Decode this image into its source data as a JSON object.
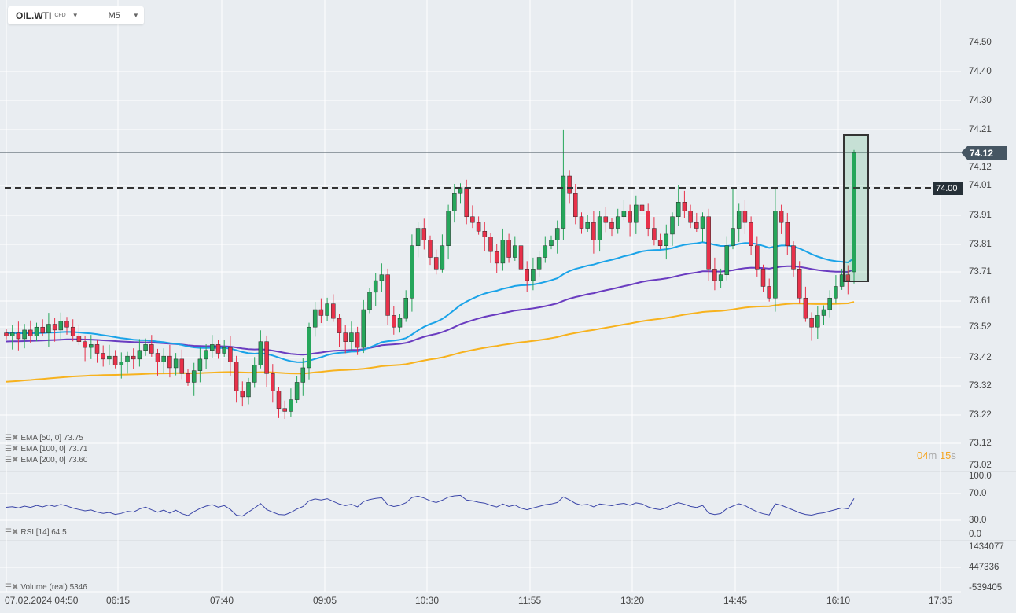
{
  "header": {
    "symbol": "OIL.WTI",
    "symbol_type": "CFD",
    "timeframe": "M5"
  },
  "legend": {
    "ema50": "EMA [50,  0] 73.75",
    "ema100": "EMA [100,  0] 73.71",
    "ema200": "EMA [200,  0] 73.60",
    "rsi": "RSI  [14]  64.5",
    "volume": "Volume  (real)  5346"
  },
  "price_axis": [
    "74.50",
    "74.40",
    "74.30",
    "74.21",
    "74.12",
    "74.01",
    "73.91",
    "73.81",
    "73.71",
    "73.61",
    "73.52",
    "73.42",
    "73.32",
    "73.22",
    "73.12",
    "73.02"
  ],
  "rsi_axis": [
    "100.0",
    "70.0",
    "30.0",
    "0.0"
  ],
  "volume_axis": [
    "1434077",
    "447336",
    "-539405"
  ],
  "time_axis": [
    "07.02.2024  04:50",
    "06:15",
    "07:40",
    "09:05",
    "10:30",
    "11:55",
    "13:20",
    "14:45",
    "16:10",
    "17:35"
  ],
  "current_price": "74.12",
  "level_line": "74.00",
  "countdown": {
    "min": "04",
    "min_unit": "m",
    "sec": "15",
    "sec_unit": "s"
  },
  "colors": {
    "up": "#26a65b",
    "down": "#e8314a",
    "ema50": "#1aa3e8",
    "ema100": "#6a3cc0",
    "ema200": "#f7b21e",
    "rsi": "#3b46a8"
  },
  "chart_data": {
    "type": "candlestick",
    "interval": "5m",
    "closes": [
      73.49,
      73.5,
      73.48,
      73.51,
      73.49,
      73.52,
      73.5,
      73.53,
      73.51,
      73.54,
      73.52,
      73.49,
      73.47,
      73.45,
      73.46,
      73.43,
      73.41,
      73.42,
      73.39,
      73.4,
      73.42,
      73.41,
      73.44,
      73.46,
      73.43,
      73.4,
      73.42,
      73.38,
      73.41,
      73.36,
      73.33,
      73.37,
      73.41,
      73.44,
      73.46,
      73.43,
      73.45,
      73.4,
      73.3,
      73.28,
      73.33,
      73.39,
      73.47,
      73.36,
      73.3,
      73.24,
      73.23,
      73.27,
      73.33,
      73.38,
      73.52,
      73.58,
      73.56,
      73.6,
      73.55,
      73.5,
      73.47,
      73.5,
      73.45,
      73.58,
      73.64,
      73.68,
      73.7,
      73.56,
      73.52,
      73.55,
      73.62,
      73.8,
      73.86,
      73.82,
      73.76,
      73.72,
      73.8,
      73.92,
      73.98,
      74.0,
      73.9,
      73.88,
      73.85,
      73.83,
      73.78,
      73.74,
      73.82,
      73.76,
      73.8,
      73.72,
      73.68,
      73.72,
      73.76,
      73.8,
      73.82,
      73.86,
      74.04,
      73.98,
      73.9,
      73.86,
      73.88,
      73.82,
      73.9,
      73.88,
      73.86,
      73.9,
      73.92,
      73.88,
      73.94,
      73.92,
      73.86,
      73.82,
      73.8,
      73.84,
      73.9,
      73.95,
      73.92,
      73.88,
      73.86,
      73.9,
      73.72,
      73.68,
      73.7,
      73.8,
      73.86,
      73.92,
      73.88,
      73.8,
      73.72,
      73.66,
      73.62,
      73.92,
      73.88,
      73.8,
      73.72,
      73.62,
      73.55,
      73.52,
      73.56,
      73.58,
      73.62,
      73.66,
      73.7,
      73.68,
      74.12
    ],
    "first_open": 73.5,
    "high_spikes": [
      {
        "i": 92,
        "high": 74.2
      },
      {
        "i": 140,
        "high": 74.13
      },
      {
        "i": 9,
        "high": 73.57
      },
      {
        "i": 111,
        "high": 74.01
      },
      {
        "i": 120,
        "high": 74.0
      },
      {
        "i": 127,
        "high": 74.0
      }
    ],
    "ema_last": {
      "ema50": 73.75,
      "ema100": 73.71,
      "ema200": 73.6
    },
    "rsi_last": 64.5,
    "ylim": [
      73.02,
      74.5
    ]
  }
}
